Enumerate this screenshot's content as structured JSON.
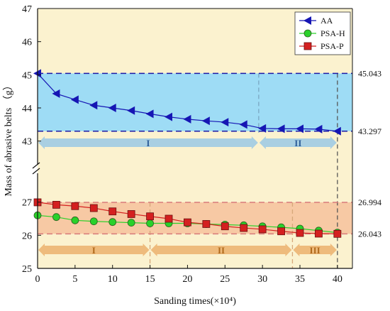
{
  "chart_data": {
    "type": "line",
    "xlabel": "Sanding times(×10⁴)",
    "ylabel": "Mass of abrasive belts （g）",
    "x": [
      0,
      2.5,
      5,
      7.5,
      10,
      12.5,
      15,
      17.5,
      20,
      22.5,
      25,
      27.5,
      30,
      32.5,
      35,
      37.5,
      40
    ],
    "xlim": [
      0,
      42
    ],
    "xticks": [
      "0",
      "5",
      "10",
      "15",
      "20",
      "25",
      "30",
      "35",
      "40"
    ],
    "y_broken": true,
    "upper_ylim": [
      42.5,
      47
    ],
    "upper_yticks": [
      "43",
      "44",
      "45",
      "46",
      "47"
    ],
    "lower_ylim": [
      25,
      28
    ],
    "lower_yticks": [
      "25",
      "26",
      "27"
    ],
    "grid": false,
    "legend_position": "top-right",
    "series": [
      {
        "name": "AA",
        "marker": "left-triangle",
        "color": "#1616b4",
        "values": [
          45.043,
          44.43,
          44.25,
          44.08,
          44.0,
          43.92,
          43.82,
          43.73,
          43.66,
          43.61,
          43.57,
          43.5,
          43.38,
          43.37,
          43.37,
          43.36,
          43.297
        ]
      },
      {
        "name": "PSA-H",
        "marker": "circle",
        "color": "#2ad12a",
        "values": [
          26.6,
          26.55,
          26.45,
          26.42,
          26.4,
          26.38,
          26.36,
          26.36,
          26.36,
          26.34,
          26.32,
          26.3,
          26.27,
          26.24,
          26.2,
          26.14,
          26.08
        ]
      },
      {
        "name": "PSA-P",
        "marker": "square",
        "color": "#d42020",
        "values": [
          26.994,
          26.92,
          26.88,
          26.82,
          26.72,
          26.64,
          26.57,
          26.5,
          26.39,
          26.34,
          26.27,
          26.22,
          26.18,
          26.12,
          26.07,
          26.05,
          26.043
        ]
      }
    ],
    "reference_lines": [
      {
        "value": 45.043,
        "label": "45.043",
        "panel": "upper"
      },
      {
        "value": 43.297,
        "label": "43.297",
        "panel": "upper"
      },
      {
        "value": 26.994,
        "label": "26.994",
        "panel": "lower"
      },
      {
        "value": 26.043,
        "label": "26.043",
        "panel": "lower"
      }
    ],
    "upper_band": {
      "from": 43.297,
      "to": 45.043,
      "color": "#9edcf5"
    },
    "lower_band": {
      "from": 26.043,
      "to": 26.994,
      "color": "#f7c9a4"
    },
    "upper_phases": [
      {
        "label": "I",
        "x_start": 0,
        "x_end": 29.5
      },
      {
        "label": "II",
        "x_start": 29.5,
        "x_end": 40
      }
    ],
    "lower_phases": [
      {
        "label": "I",
        "x_start": 0,
        "x_end": 15
      },
      {
        "label": "II",
        "x_start": 15,
        "x_end": 34
      },
      {
        "label": "III",
        "x_start": 34,
        "x_end": 40
      }
    ],
    "divider_x": [
      29.5,
      15,
      34,
      40
    ]
  },
  "colors": {
    "background": "#fbf2cf",
    "upper_phase_arrow": "#a9cfe2",
    "upper_phase_text": "#2f5f9a",
    "lower_phase_arrow": "#eebb7c",
    "lower_phase_text": "#b06a1c",
    "ref_line": "#1a1aa8"
  }
}
